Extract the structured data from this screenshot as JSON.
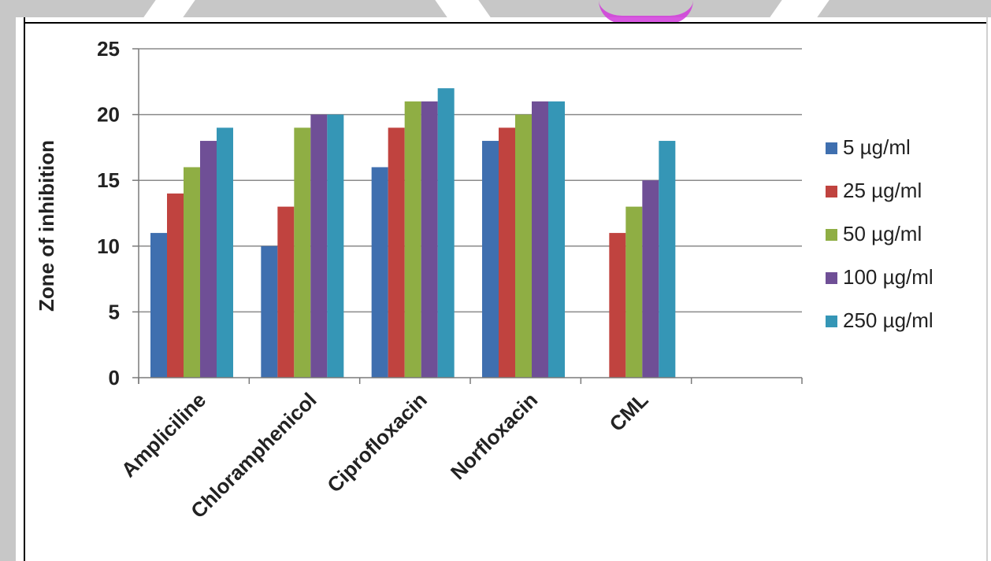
{
  "chart_data": {
    "type": "bar",
    "title": "",
    "xlabel": "",
    "ylabel": "Zone of inhibition",
    "ylim": [
      0,
      25
    ],
    "yticks": [
      0,
      5,
      10,
      15,
      20,
      25
    ],
    "grid": true,
    "legend_position": "right",
    "categories": [
      "Ampliciline",
      "Chloramphenicol",
      "Ciprofloxacin",
      "Norfloxacin",
      "CML"
    ],
    "series": [
      {
        "name": "5 µg/ml",
        "color": "#3f6faf",
        "values": [
          11,
          10,
          16,
          18,
          0
        ]
      },
      {
        "name": "25 µg/ml",
        "color": "#c0433f",
        "values": [
          14,
          13,
          19,
          19,
          11
        ]
      },
      {
        "name": "50 µg/ml",
        "color": "#8fae44",
        "values": [
          16,
          19,
          21,
          20,
          13
        ]
      },
      {
        "name": "100 µg/ml",
        "color": "#6f4f96",
        "values": [
          18,
          20,
          21,
          21,
          15
        ]
      },
      {
        "name": "250 µg/ml",
        "color": "#3596b6",
        "values": [
          19,
          20,
          22,
          21,
          18
        ]
      }
    ]
  }
}
